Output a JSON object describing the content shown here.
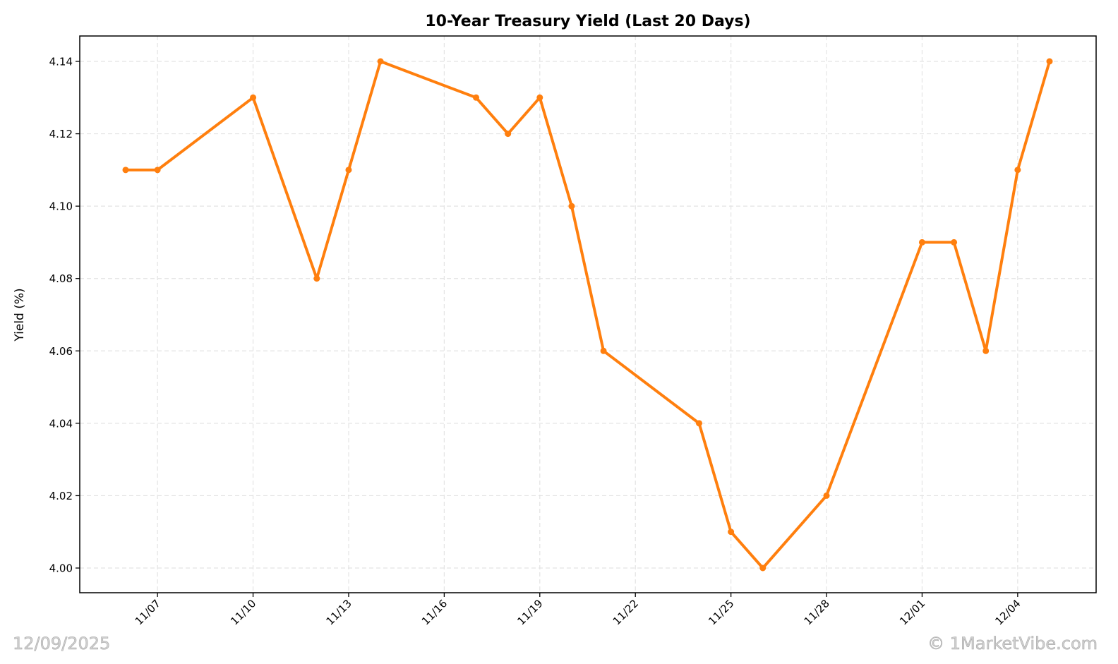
{
  "chart_data": {
    "type": "line",
    "title": "10-Year Treasury Yield (Last 20 Days)",
    "xlabel": "",
    "ylabel": "Yield (%)",
    "ylim": [
      3.993,
      4.147
    ],
    "yticks": [
      "4.00",
      "4.02",
      "4.04",
      "4.06",
      "4.08",
      "4.10",
      "4.12",
      "4.14"
    ],
    "xticks": [
      "11/07",
      "11/10",
      "11/13",
      "11/16",
      "11/19",
      "11/22",
      "11/25",
      "11/28",
      "12/01",
      "12/04"
    ],
    "grid": true,
    "legend": null,
    "line_color": "#ff7f0e",
    "series": [
      {
        "name": "10-Year Treasury Yield",
        "x": [
          "11/06",
          "11/07",
          "11/10",
          "11/12",
          "11/13",
          "11/14",
          "11/17",
          "11/18",
          "11/19",
          "11/20",
          "11/21",
          "11/24",
          "11/25",
          "11/26",
          "11/28",
          "12/01",
          "12/02",
          "12/03",
          "12/04",
          "12/05"
        ],
        "day_offset": [
          0,
          1,
          4,
          6,
          7,
          8,
          11,
          12,
          13,
          14,
          15,
          18,
          19,
          20,
          22,
          25,
          26,
          27,
          28,
          29
        ],
        "values": [
          4.11,
          4.11,
          4.13,
          4.08,
          4.11,
          4.14,
          4.13,
          4.12,
          4.13,
          4.1,
          4.06,
          4.04,
          4.01,
          4.0,
          4.02,
          4.09,
          4.09,
          4.06,
          4.11,
          4.14
        ]
      }
    ]
  },
  "watermarks": {
    "date": "12/09/2025",
    "copyright": "© 1MarketVibe.com"
  }
}
